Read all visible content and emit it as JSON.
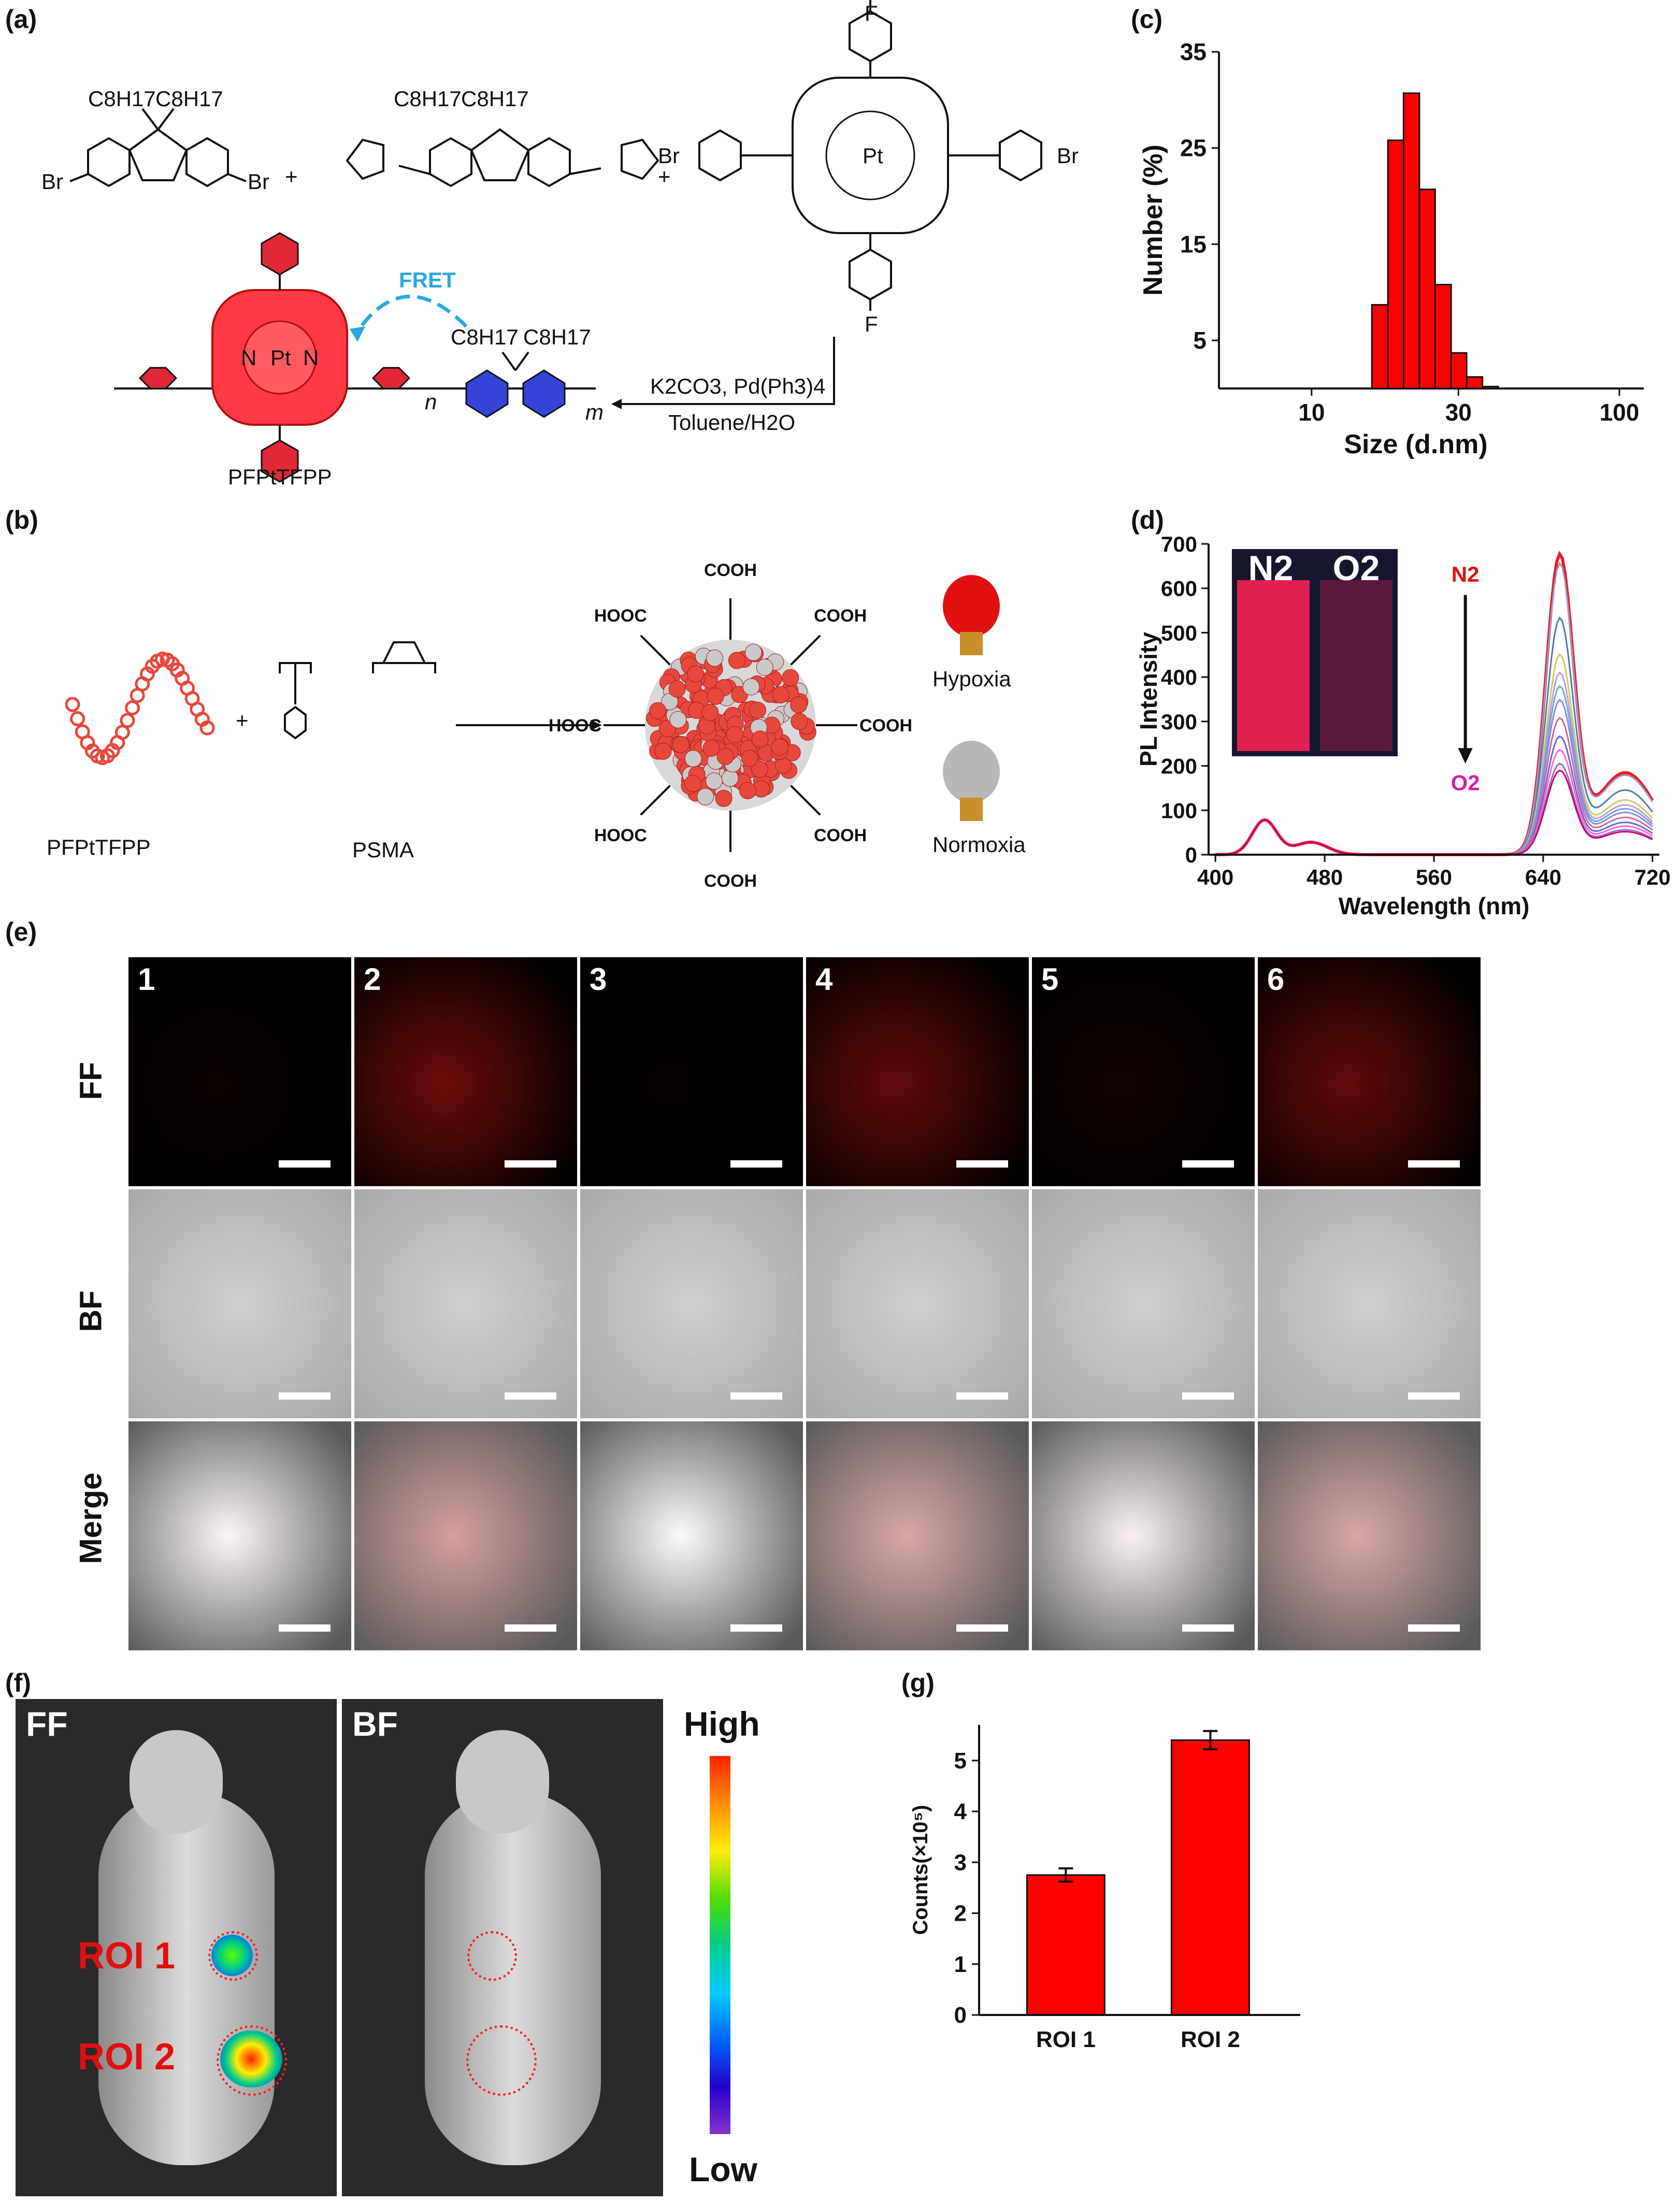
{
  "panel_labels": {
    "a": "(a)",
    "b": "(b)",
    "c": "(c)",
    "d": "(d)",
    "e": "(e)",
    "f": "(f)",
    "g": "(g)"
  },
  "panel_a": {
    "c8h17": "C8H17",
    "br": "Br",
    "plus": "+",
    "pt": "Pt",
    "n": "N",
    "f": "F",
    "fret": "FRET",
    "reagents": "K2CO3, Pd(Ph3)4",
    "solvent": "Toluene/H2O",
    "product": "PFPtTFPP",
    "sub_n": "n",
    "sub_m": "m"
  },
  "panel_b": {
    "polymer_label": "PFPtTFPP",
    "psma_label": "PSMA",
    "cooh": "COOH",
    "hooc": "HOOC",
    "hypoxia": "Hypoxia",
    "normoxia": "Normoxia",
    "colors": {
      "polymer": "#e8473c",
      "bulb_red": "#e01010",
      "bulb_gray": "#b8b8b8"
    }
  },
  "chart_data": [
    {
      "id": "c",
      "type": "bar",
      "xlabel": "Size (d.nm)",
      "ylabel": "Number (%)",
      "xscale": "log",
      "xlim": [
        5,
        120
      ],
      "ylim": [
        0,
        35
      ],
      "xticks": [
        10,
        30,
        100
      ],
      "yticks": [
        5,
        15,
        25,
        35
      ],
      "bins": [
        {
          "x0": 15.7,
          "x1": 17.7,
          "value": 8.7
        },
        {
          "x0": 17.7,
          "x1": 19.9,
          "value": 25.8
        },
        {
          "x0": 19.9,
          "x1": 22.4,
          "value": 30.7
        },
        {
          "x0": 22.4,
          "x1": 25.2,
          "value": 20.7
        },
        {
          "x0": 25.2,
          "x1": 28.4,
          "value": 10.8
        },
        {
          "x0": 28.4,
          "x1": 31.9,
          "value": 3.7
        },
        {
          "x0": 31.9,
          "x1": 35.9,
          "value": 1.2
        },
        {
          "x0": 35.9,
          "x1": 40.4,
          "value": 0.2
        }
      ],
      "color": "#ff0000"
    },
    {
      "id": "d",
      "type": "line",
      "xlabel": "Wavelength (nm)",
      "ylabel": "PL Intensity",
      "xlim": [
        395,
        725
      ],
      "ylim": [
        0,
        700
      ],
      "xticks": [
        400,
        480,
        560,
        640,
        720
      ],
      "yticks": [
        0,
        100,
        200,
        300,
        400,
        500,
        600,
        700
      ],
      "inset_labels": [
        "N2",
        "O2"
      ],
      "arrow_top": "N2",
      "arrow_bottom": "O2",
      "peak_levels": [
        660,
        640,
        520,
        440,
        400,
        370,
        340,
        300,
        260,
        230,
        200,
        185
      ],
      "series_colors": [
        "#ee1c24",
        "#9999cc",
        "#4a7ab5",
        "#cccc66",
        "#cc99cc",
        "#66aadd",
        "#8888ee",
        "#cc6699",
        "#6666cc",
        "#ff66cc",
        "#9966cc",
        "#cc0066"
      ]
    },
    {
      "id": "g",
      "type": "bar",
      "categories": [
        "ROI 1",
        "ROI 2"
      ],
      "values": [
        2.75,
        5.4
      ],
      "errors": [
        0.13,
        0.18
      ],
      "ylabel": "Counts(×10⁵)",
      "ylim": [
        0,
        5.7
      ],
      "yticks": [
        0,
        1,
        2,
        3,
        4,
        5
      ],
      "color": "#ff0000"
    }
  ],
  "panel_e": {
    "columns": [
      "1",
      "2",
      "3",
      "4",
      "5",
      "6"
    ],
    "rows": [
      "FF",
      "BF",
      "Merge"
    ],
    "ff_intensity": [
      0.05,
      0.55,
      0.03,
      0.5,
      0.08,
      0.5
    ]
  },
  "panel_f": {
    "ff_label": "FF",
    "bf_label": "BF",
    "roi1": "ROI 1",
    "roi2": "ROI 2",
    "scale_high": "High",
    "scale_low": "Low"
  }
}
